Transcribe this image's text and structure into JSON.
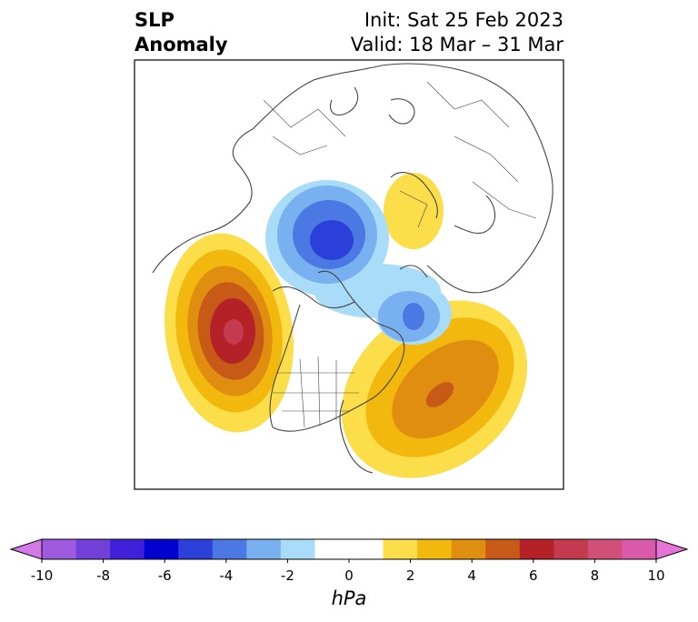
{
  "title": {
    "left_line1": "SLP",
    "left_line2": "Anomaly",
    "right_line1": "Init: Sat 25 Feb 2023",
    "right_line2": "Valid: 18 Mar – 31 Mar"
  },
  "colorbar": {
    "unit": "hPa",
    "min": -10,
    "max": 10,
    "extend": "both",
    "tick_values": [
      -10,
      -8,
      -6,
      -4,
      -2,
      0,
      2,
      4,
      6,
      8,
      10
    ],
    "tick_labels": [
      "-10",
      "-8",
      "-6",
      "-4",
      "-2",
      "0",
      "2",
      "4",
      "6",
      "8",
      "10"
    ],
    "colors": [
      "#d47ae8",
      "#a05ae0",
      "#7040d8",
      "#4020d8",
      "#0000d0",
      "#2a40d8",
      "#4c78e4",
      "#78b0f0",
      "#a8dcf8",
      "#ffffff",
      "#ffffff",
      "#fbde4a",
      "#f3b80e",
      "#e08e10",
      "#c85a18",
      "#b42228",
      "#c43a4e",
      "#d0507a",
      "#d85aa8",
      "#e674d8"
    ]
  },
  "anomalies": [
    {
      "name": "Negative anomaly over Arctic / Canadian archipelago",
      "sign": "negative",
      "peak_hPa": -5
    },
    {
      "name": "Negative anomaly near Svalbard / Barents Sea",
      "sign": "negative",
      "peak_hPa": -4
    },
    {
      "name": "Positive anomaly over Gulf of Alaska / NE Pacific",
      "sign": "positive",
      "peak_hPa": 7
    },
    {
      "name": "Positive anomaly over western North Atlantic",
      "sign": "positive",
      "peak_hPa": 5
    },
    {
      "name": "Positive anomaly over central Siberia",
      "sign": "positive",
      "peak_hPa": 2
    }
  ],
  "map": {
    "projection": "north-polar-stereographic",
    "border_color": "#444444"
  }
}
